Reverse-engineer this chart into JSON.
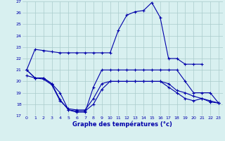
{
  "line1_x": [
    0,
    1,
    2,
    3,
    4,
    5,
    6,
    7,
    8,
    9,
    10,
    11,
    12,
    13,
    14,
    15,
    16,
    17,
    18,
    19,
    20,
    21
  ],
  "line1_y": [
    21.0,
    22.8,
    22.7,
    22.6,
    22.5,
    22.5,
    22.5,
    22.5,
    22.5,
    22.5,
    22.5,
    24.5,
    25.8,
    26.1,
    26.2,
    26.9,
    25.6,
    22.0,
    22.0,
    21.5,
    21.5,
    21.5
  ],
  "line2_x": [
    0,
    1,
    2,
    3,
    4,
    5,
    6,
    7,
    8,
    9,
    10,
    11,
    12,
    13,
    14,
    15,
    16,
    17,
    18,
    19,
    20,
    21,
    22,
    23
  ],
  "line2_y": [
    21.0,
    20.3,
    20.3,
    19.8,
    19.0,
    17.5,
    17.3,
    17.3,
    19.5,
    21.0,
    21.0,
    21.0,
    21.0,
    21.0,
    21.0,
    21.0,
    21.0,
    21.0,
    21.0,
    20.0,
    19.0,
    19.0,
    19.0,
    18.1
  ],
  "line3_x": [
    0,
    1,
    2,
    3,
    4,
    5,
    6,
    7,
    8,
    9,
    10,
    11,
    12,
    13,
    14,
    15,
    16,
    17,
    18,
    19,
    20,
    21,
    22,
    23
  ],
  "line3_y": [
    21.0,
    20.3,
    20.3,
    19.8,
    18.4,
    17.5,
    17.4,
    17.4,
    18.0,
    19.3,
    20.0,
    20.0,
    20.0,
    20.0,
    20.0,
    20.0,
    20.0,
    19.5,
    19.0,
    18.5,
    18.3,
    18.5,
    18.2,
    18.1
  ],
  "line4_x": [
    0,
    1,
    2,
    3,
    4,
    5,
    6,
    7,
    8,
    9,
    10,
    11,
    12,
    13,
    14,
    15,
    16,
    17,
    18,
    19,
    20,
    21,
    22,
    23
  ],
  "line4_y": [
    20.5,
    20.3,
    20.2,
    19.7,
    18.3,
    17.6,
    17.5,
    17.5,
    18.5,
    19.8,
    20.0,
    20.0,
    20.0,
    20.0,
    20.0,
    20.0,
    20.0,
    19.8,
    19.2,
    19.0,
    18.7,
    18.5,
    18.3,
    18.1
  ],
  "line_color": "#0000aa",
  "bg_color": "#d8f0f0",
  "grid_color": "#aacccc",
  "xlabel": "Graphe des températures (°c)",
  "xlim": [
    -0.5,
    23.5
  ],
  "ylim": [
    17,
    27
  ],
  "yticks": [
    17,
    18,
    19,
    20,
    21,
    22,
    23,
    24,
    25,
    26,
    27
  ],
  "xticks": [
    0,
    1,
    2,
    3,
    4,
    5,
    6,
    7,
    8,
    9,
    10,
    11,
    12,
    13,
    14,
    15,
    16,
    17,
    18,
    19,
    20,
    21,
    22,
    23
  ]
}
